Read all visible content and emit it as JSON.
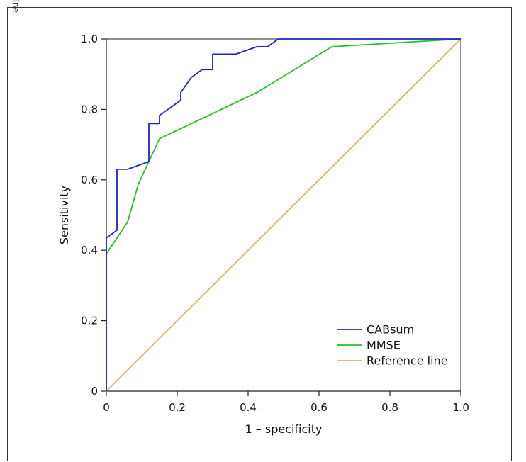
{
  "side_note": "Color version available online",
  "chart_data": {
    "type": "line",
    "title": "",
    "xlabel": "1 – specificity",
    "ylabel": "Sensitivity",
    "xlim": [
      0,
      1
    ],
    "ylim": [
      0,
      1
    ],
    "x_ticks": [
      {
        "value": 0,
        "label": "0"
      },
      {
        "value": 0.2,
        "label": "0.2"
      },
      {
        "value": 0.4,
        "label": "0.4"
      },
      {
        "value": 0.6,
        "label": "0.6"
      },
      {
        "value": 0.8,
        "label": "0.8"
      },
      {
        "value": 1.0,
        "label": "1.0"
      }
    ],
    "y_ticks": [
      {
        "value": 0,
        "label": "0"
      },
      {
        "value": 0.2,
        "label": "0.2"
      },
      {
        "value": 0.4,
        "label": "0.4"
      },
      {
        "value": 0.6,
        "label": "0.6"
      },
      {
        "value": 0.8,
        "label": "0.8"
      },
      {
        "value": 1.0,
        "label": "1.0"
      }
    ],
    "grid": false,
    "legend_position": "bottom-right",
    "series": [
      {
        "name": "CABsum",
        "color": "#1f24c8",
        "points": [
          [
            0,
            0
          ],
          [
            0,
            0.435
          ],
          [
            0.03,
            0.457
          ],
          [
            0.03,
            0.63
          ],
          [
            0.06,
            0.63
          ],
          [
            0.12,
            0.652
          ],
          [
            0.12,
            0.76
          ],
          [
            0.15,
            0.76
          ],
          [
            0.15,
            0.783
          ],
          [
            0.21,
            0.826
          ],
          [
            0.21,
            0.848
          ],
          [
            0.24,
            0.891
          ],
          [
            0.27,
            0.913
          ],
          [
            0.3,
            0.913
          ],
          [
            0.3,
            0.957
          ],
          [
            0.365,
            0.957
          ],
          [
            0.425,
            0.978
          ],
          [
            0.455,
            0.978
          ],
          [
            0.485,
            1.0
          ],
          [
            1.0,
            1.0
          ]
        ]
      },
      {
        "name": "MMSE",
        "color": "#22c422",
        "points": [
          [
            0,
            0
          ],
          [
            0,
            0.39
          ],
          [
            0.06,
            0.48
          ],
          [
            0.09,
            0.587
          ],
          [
            0.15,
            0.717
          ],
          [
            0.425,
            0.848
          ],
          [
            0.636,
            0.978
          ],
          [
            1.0,
            1.0
          ]
        ]
      },
      {
        "name": "Reference line",
        "color": "#d9b463",
        "points": [
          [
            0,
            0
          ],
          [
            1.0,
            1.0
          ]
        ]
      }
    ]
  }
}
